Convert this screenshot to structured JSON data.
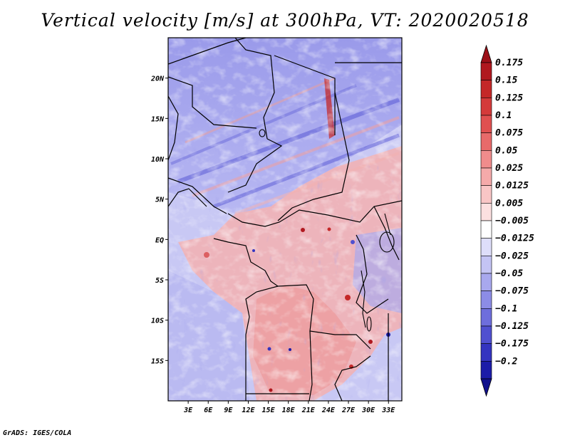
{
  "title": "Vertical velocity [m/s] at 300hPa, VT: 2020020518",
  "footer": "GrADS: IGES/COLA",
  "chart_data": {
    "type": "heatmap",
    "variable": "Vertical velocity",
    "units": "m/s",
    "level": "300hPa",
    "valid_time": "2020020518",
    "lon_range": [
      0,
      35
    ],
    "lat_range": [
      -20,
      25
    ],
    "x_ticks": [
      {
        "value": 3,
        "label": "3E"
      },
      {
        "value": 6,
        "label": "6E"
      },
      {
        "value": 9,
        "label": "9E"
      },
      {
        "value": 12,
        "label": "12E"
      },
      {
        "value": 15,
        "label": "15E"
      },
      {
        "value": 18,
        "label": "18E"
      },
      {
        "value": 21,
        "label": "21E"
      },
      {
        "value": 24,
        "label": "24E"
      },
      {
        "value": 27,
        "label": "27E"
      },
      {
        "value": 30,
        "label": "30E"
      },
      {
        "value": 33,
        "label": "33E"
      }
    ],
    "y_ticks": [
      {
        "value": 20,
        "label": "20N"
      },
      {
        "value": 15,
        "label": "15N"
      },
      {
        "value": 10,
        "label": "10N"
      },
      {
        "value": 5,
        "label": "5N"
      },
      {
        "value": 0,
        "label": "EQ"
      },
      {
        "value": -5,
        "label": "5S"
      },
      {
        "value": -10,
        "label": "10S"
      },
      {
        "value": -15,
        "label": "15S"
      }
    ],
    "colorbar": {
      "levels": [
        {
          "label": "0.175",
          "color": "#b0181f"
        },
        {
          "label": "0.15",
          "color": "#c42828"
        },
        {
          "label": "0.125",
          "color": "#d43a3a"
        },
        {
          "label": "0.1",
          "color": "#e05050"
        },
        {
          "label": "0.075",
          "color": "#e86a6a"
        },
        {
          "label": "0.05",
          "color": "#f08c8c"
        },
        {
          "label": "0.025",
          "color": "#f5aaaa"
        },
        {
          "label": "0.0125",
          "color": "#f9c6c6"
        },
        {
          "label": "0.005",
          "color": "#fce0e0"
        },
        {
          "label": "−0.005",
          "color": "#ffffff"
        },
        {
          "label": "−0.0125",
          "color": "#dedefa"
        },
        {
          "label": "−0.025",
          "color": "#c4c4f4"
        },
        {
          "label": "−0.05",
          "color": "#a8a8ee"
        },
        {
          "label": "−0.075",
          "color": "#8c8ce6"
        },
        {
          "label": "−0.1",
          "color": "#6e6edc"
        },
        {
          "label": "−0.125",
          "color": "#5050d0"
        },
        {
          "label": "−0.175",
          "color": "#3434c0"
        },
        {
          "label": "−0.2",
          "color": "#1c1ca8"
        }
      ],
      "top_triangle_color": "#9c1018",
      "bottom_triangle_color": "#10108c"
    }
  }
}
